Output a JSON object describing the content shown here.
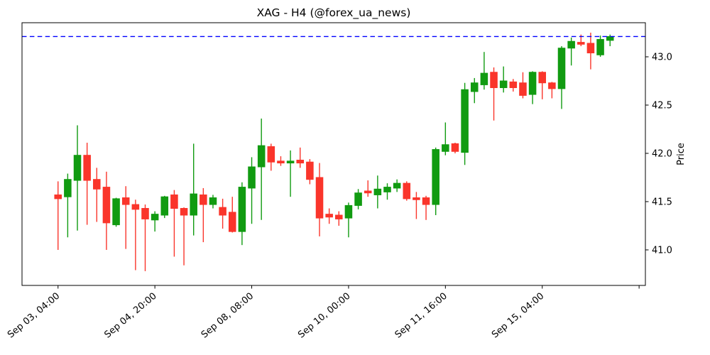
{
  "chart_data": {
    "type": "candlestick",
    "title": "XAG - H4 (@forex_ua_news)",
    "ylabel": "Price",
    "legend": null,
    "grid": false,
    "axis_side": "right",
    "hline": {
      "price": 43.21,
      "color": "#0000ff",
      "style": "dashed",
      "note": "last close level"
    },
    "colors": {
      "up": "#119b11",
      "down": "#fa352b",
      "hline": "#0000ff",
      "axis": "#000000",
      "background": "#ffffff"
    },
    "ylim": [
      40.632,
      43.353
    ],
    "xlim": [
      -3.72,
      60.65
    ],
    "y_ticks": [
      41.0,
      41.5,
      42.0,
      42.5,
      43.0
    ],
    "x_ticks": [
      {
        "index": 0,
        "label": "Sep 03, 04:00"
      },
      {
        "index": 10,
        "label": "Sep 04, 20:00"
      },
      {
        "index": 20,
        "label": "Sep 08, 08:00"
      },
      {
        "index": 30,
        "label": "Sep 10, 00:00"
      },
      {
        "index": 40,
        "label": "Sep 11, 16:00"
      },
      {
        "index": 50,
        "label": "Sep 15, 04:00"
      },
      {
        "index": 60,
        "label": ""
      }
    ],
    "candles": [
      {
        "o": 41.57,
        "h": 41.71,
        "l": 41.0,
        "c": 41.53
      },
      {
        "o": 41.55,
        "h": 41.79,
        "l": 41.13,
        "c": 41.73
      },
      {
        "o": 41.72,
        "h": 42.29,
        "l": 41.2,
        "c": 41.98
      },
      {
        "o": 41.98,
        "h": 42.11,
        "l": 41.26,
        "c": 41.72
      },
      {
        "o": 41.73,
        "h": 41.85,
        "l": 41.29,
        "c": 41.63
      },
      {
        "o": 41.65,
        "h": 41.81,
        "l": 41.0,
        "c": 41.28
      },
      {
        "o": 41.26,
        "h": 41.54,
        "l": 41.24,
        "c": 41.53
      },
      {
        "o": 41.54,
        "h": 41.66,
        "l": 41.01,
        "c": 41.47
      },
      {
        "o": 41.47,
        "h": 41.52,
        "l": 40.79,
        "c": 41.42
      },
      {
        "o": 41.43,
        "h": 41.47,
        "l": 40.78,
        "c": 41.32
      },
      {
        "o": 41.31,
        "h": 41.4,
        "l": 41.19,
        "c": 41.37
      },
      {
        "o": 41.36,
        "h": 41.56,
        "l": 41.33,
        "c": 41.55
      },
      {
        "o": 41.57,
        "h": 41.62,
        "l": 40.93,
        "c": 41.43
      },
      {
        "o": 41.43,
        "h": 41.44,
        "l": 40.84,
        "c": 41.36
      },
      {
        "o": 41.36,
        "h": 42.1,
        "l": 41.15,
        "c": 41.58
      },
      {
        "o": 41.57,
        "h": 41.64,
        "l": 41.08,
        "c": 41.47
      },
      {
        "o": 41.47,
        "h": 41.57,
        "l": 41.43,
        "c": 41.54
      },
      {
        "o": 41.44,
        "h": 41.53,
        "l": 41.22,
        "c": 41.36
      },
      {
        "o": 41.39,
        "h": 41.55,
        "l": 41.18,
        "c": 41.19
      },
      {
        "o": 41.19,
        "h": 41.7,
        "l": 41.05,
        "c": 41.65
      },
      {
        "o": 41.64,
        "h": 41.96,
        "l": 41.27,
        "c": 41.86
      },
      {
        "o": 41.86,
        "h": 42.36,
        "l": 41.31,
        "c": 42.08
      },
      {
        "o": 42.07,
        "h": 42.1,
        "l": 41.82,
        "c": 41.91
      },
      {
        "o": 41.92,
        "h": 41.97,
        "l": 41.87,
        "c": 41.9
      },
      {
        "o": 41.9,
        "h": 42.03,
        "l": 41.55,
        "c": 41.92
      },
      {
        "o": 41.93,
        "h": 42.06,
        "l": 41.85,
        "c": 41.9
      },
      {
        "o": 41.91,
        "h": 41.94,
        "l": 41.68,
        "c": 41.73
      },
      {
        "o": 41.75,
        "h": 41.9,
        "l": 41.14,
        "c": 41.33
      },
      {
        "o": 41.37,
        "h": 41.43,
        "l": 41.27,
        "c": 41.34
      },
      {
        "o": 41.36,
        "h": 41.4,
        "l": 41.25,
        "c": 41.32
      },
      {
        "o": 41.33,
        "h": 41.49,
        "l": 41.13,
        "c": 41.46
      },
      {
        "o": 41.46,
        "h": 41.63,
        "l": 41.42,
        "c": 41.59
      },
      {
        "o": 41.61,
        "h": 41.72,
        "l": 41.55,
        "c": 41.59
      },
      {
        "o": 41.57,
        "h": 41.77,
        "l": 41.43,
        "c": 41.63
      },
      {
        "o": 41.6,
        "h": 41.69,
        "l": 41.52,
        "c": 41.65
      },
      {
        "o": 41.64,
        "h": 41.73,
        "l": 41.6,
        "c": 41.69
      },
      {
        "o": 41.69,
        "h": 41.71,
        "l": 41.51,
        "c": 41.53
      },
      {
        "o": 41.54,
        "h": 41.6,
        "l": 41.32,
        "c": 41.52
      },
      {
        "o": 41.54,
        "h": 41.56,
        "l": 41.31,
        "c": 41.47
      },
      {
        "o": 41.47,
        "h": 42.06,
        "l": 41.36,
        "c": 42.04
      },
      {
        "o": 42.02,
        "h": 42.32,
        "l": 41.98,
        "c": 42.09
      },
      {
        "o": 42.1,
        "h": 42.11,
        "l": 42.0,
        "c": 42.02
      },
      {
        "o": 42.01,
        "h": 42.73,
        "l": 41.88,
        "c": 42.66
      },
      {
        "o": 42.64,
        "h": 42.78,
        "l": 42.52,
        "c": 42.73
      },
      {
        "o": 42.71,
        "h": 43.05,
        "l": 42.66,
        "c": 42.83
      },
      {
        "o": 42.84,
        "h": 42.89,
        "l": 42.34,
        "c": 42.68
      },
      {
        "o": 42.68,
        "h": 42.9,
        "l": 42.63,
        "c": 42.75
      },
      {
        "o": 42.74,
        "h": 42.77,
        "l": 42.64,
        "c": 42.68
      },
      {
        "o": 42.73,
        "h": 42.84,
        "l": 42.57,
        "c": 42.6
      },
      {
        "o": 42.61,
        "h": 42.85,
        "l": 42.51,
        "c": 42.84
      },
      {
        "o": 42.84,
        "h": 42.85,
        "l": 42.56,
        "c": 42.73
      },
      {
        "o": 42.73,
        "h": 42.74,
        "l": 42.57,
        "c": 42.67
      },
      {
        "o": 42.67,
        "h": 43.11,
        "l": 42.46,
        "c": 43.09
      },
      {
        "o": 43.09,
        "h": 43.2,
        "l": 42.91,
        "c": 43.16
      },
      {
        "o": 43.15,
        "h": 43.23,
        "l": 43.11,
        "c": 43.13
      },
      {
        "o": 43.14,
        "h": 43.25,
        "l": 42.87,
        "c": 43.04
      },
      {
        "o": 43.02,
        "h": 43.22,
        "l": 43.0,
        "c": 43.18
      },
      {
        "o": 43.17,
        "h": 43.23,
        "l": 43.11,
        "c": 43.21
      }
    ]
  }
}
